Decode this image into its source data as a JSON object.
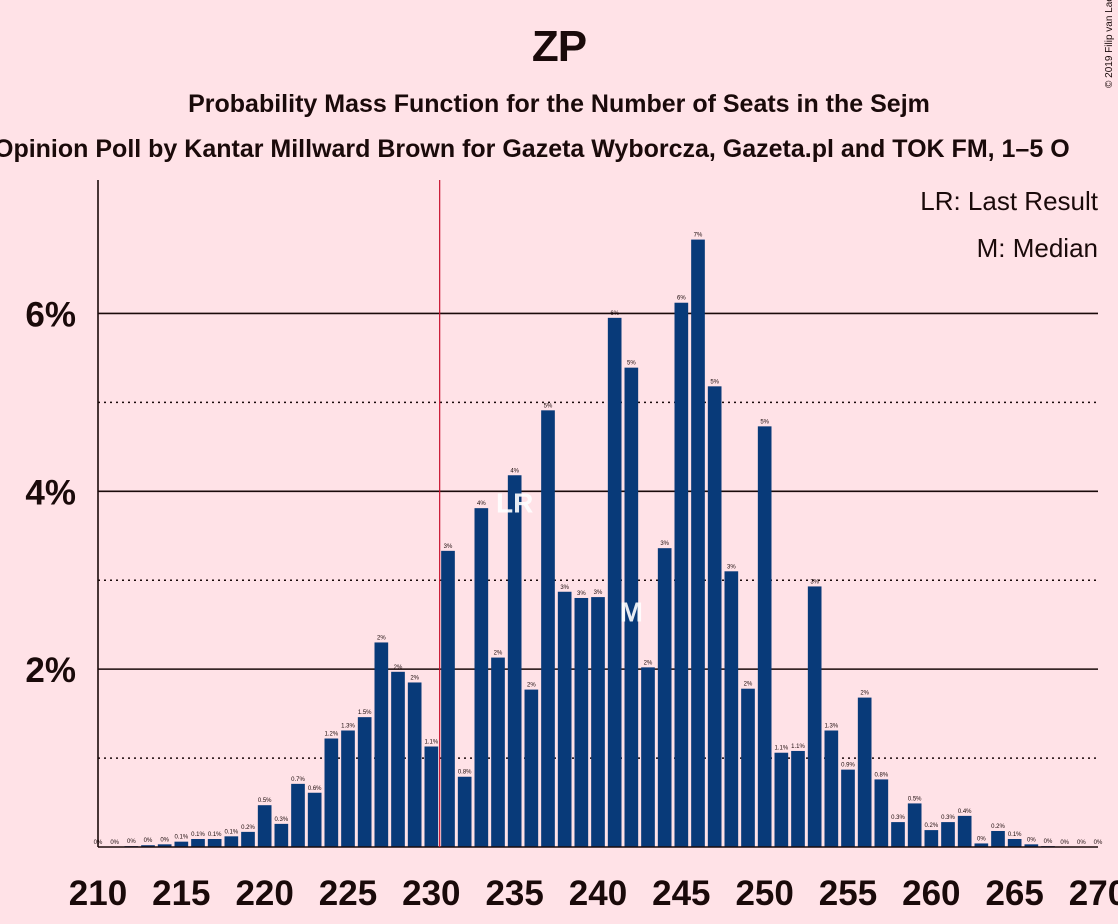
{
  "title": "ZP",
  "subtitle": "Probability Mass Function for the Number of Seats in the Sejm",
  "poll": "Opinion Poll by Kantar Millward Brown for Gazeta Wyborcza, Gazeta.pl and TOK FM, 1–5 O",
  "copyright": "© 2019 Filip van Laenen",
  "colors": {
    "background": "#FFE2E7",
    "bar": "#083A79",
    "majority_line": "#C8102E",
    "text": "#1a0a0a"
  },
  "chart_data": {
    "type": "bar",
    "xlim": [
      210,
      270
    ],
    "ylim": [
      0,
      7.5
    ],
    "x_ticks": [
      "210",
      "215",
      "220",
      "225",
      "230",
      "235",
      "240",
      "245",
      "250",
      "255",
      "260",
      "265",
      "270"
    ],
    "y_ticks": [
      "2%",
      "4%",
      "6%"
    ],
    "gridlines": {
      "solid": [
        2,
        4,
        6
      ],
      "dotted": [
        1,
        3,
        5
      ]
    },
    "majority_line_x": 230.5,
    "legend": [
      "LR: Last Result",
      "M: Median"
    ],
    "legend_position": "top-right",
    "last_result": {
      "x": 235,
      "label": "LR"
    },
    "median": {
      "x": 242,
      "label": "M"
    },
    "x": [
      210,
      211,
      212,
      213,
      214,
      215,
      216,
      217,
      218,
      219,
      220,
      221,
      222,
      223,
      224,
      225,
      226,
      227,
      228,
      229,
      230,
      231,
      232,
      233,
      234,
      235,
      236,
      237,
      238,
      239,
      240,
      241,
      242,
      243,
      244,
      245,
      246,
      247,
      248,
      249,
      250,
      251,
      252,
      253,
      254,
      255,
      256,
      257,
      258,
      259,
      260,
      261,
      262,
      263,
      264,
      265,
      266,
      267,
      268,
      269,
      270
    ],
    "values": [
      0,
      0,
      0.01,
      0.02,
      0.03,
      0.06,
      0.09,
      0.09,
      0.12,
      0.17,
      0.47,
      0.26,
      0.71,
      0.61,
      1.22,
      1.31,
      1.46,
      2.3,
      1.97,
      1.85,
      1.13,
      3.33,
      0.79,
      3.81,
      2.13,
      4.18,
      1.77,
      4.91,
      2.87,
      2.8,
      2.81,
      5.95,
      5.39,
      2.02,
      3.36,
      6.12,
      6.83,
      5.18,
      3.1,
      1.78,
      4.73,
      1.06,
      1.08,
      2.93,
      1.31,
      0.87,
      1.68,
      0.76,
      0.28,
      0.49,
      0.19,
      0.28,
      0.35,
      0.04,
      0.18,
      0.09,
      0.03,
      0.01,
      0,
      0,
      0
    ],
    "labels": [
      "0%",
      "0%",
      "0%",
      "0%",
      "0%",
      "0.1%",
      "0.1%",
      "0.1%",
      "0.1%",
      "0.2%",
      "0.5%",
      "0.3%",
      "0.7%",
      "0.6%",
      "1.2%",
      "1.3%",
      "1.5%",
      "2%",
      "2%",
      "2%",
      "1.1%",
      "3%",
      "0.8%",
      "4%",
      "2%",
      "4%",
      "2%",
      "5%",
      "3%",
      "3%",
      "3%",
      "6%",
      "5%",
      "2%",
      "3%",
      "6%",
      "7%",
      "5%",
      "3%",
      "2%",
      "5%",
      "1.1%",
      "1.1%",
      "3%",
      "1.3%",
      "0.9%",
      "2%",
      "0.8%",
      "0.3%",
      "0.5%",
      "0.2%",
      "0.3%",
      "0.4%",
      "0%",
      "0.2%",
      "0.1%",
      "0%",
      "0%",
      "0%",
      "0%",
      "0%"
    ]
  }
}
